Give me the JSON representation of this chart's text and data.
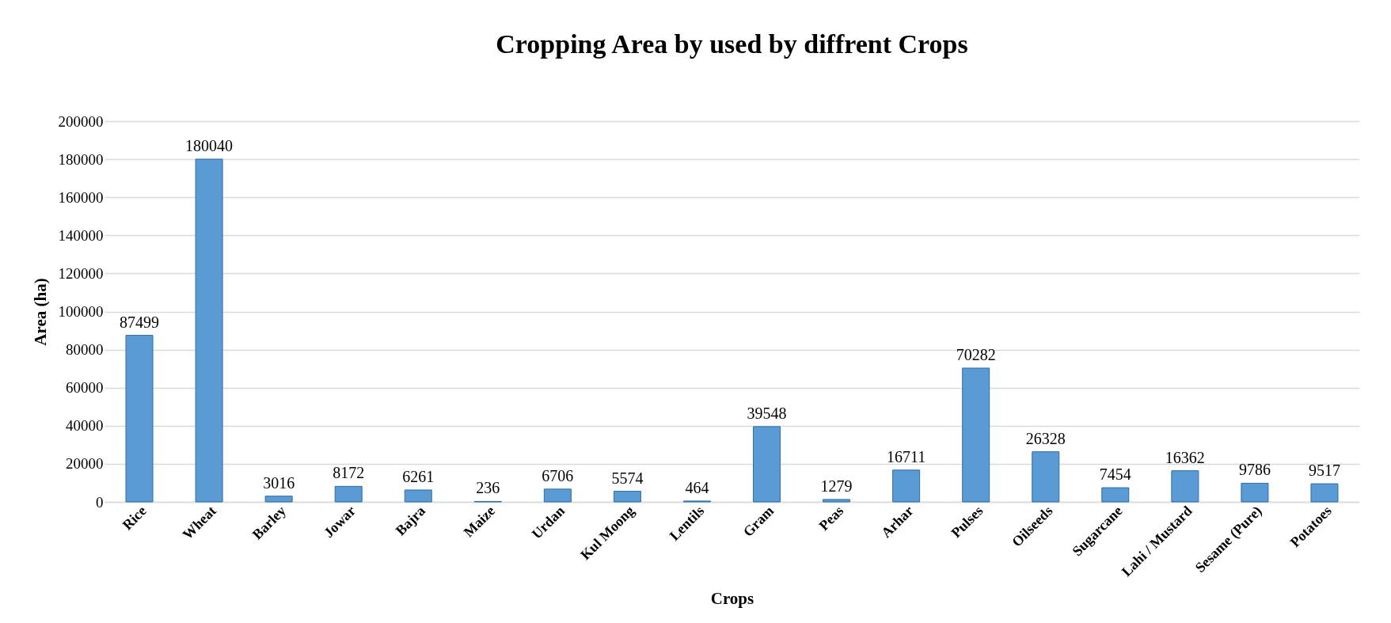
{
  "chart_data": {
    "type": "bar",
    "title": "Cropping Area by used by diffrent Crops",
    "xlabel": "Crops",
    "ylabel": "Area (ha)",
    "categories": [
      "Rice",
      "Wheat",
      "Barley",
      "Jowar",
      "Bajra",
      "Maize",
      "Urdan",
      "Kul Moong",
      "Lentils",
      "Gram",
      "Peas",
      "Arhar",
      "Pulses",
      "Oilseeds",
      "Sugarcane",
      "Lahi / Mustard",
      "Sesame (Pure)",
      "Potatoes"
    ],
    "values": [
      87499,
      180040,
      3016,
      8172,
      6261,
      236,
      6706,
      5574,
      464,
      39548,
      1279,
      16711,
      70282,
      26328,
      7454,
      16362,
      9786,
      9517
    ],
    "color": "#5b9bd5",
    "ylim": [
      0,
      200000
    ],
    "yticks": [
      0,
      20000,
      40000,
      60000,
      80000,
      100000,
      120000,
      140000,
      160000,
      180000,
      200000
    ],
    "grid": "y",
    "data_labels": true
  }
}
